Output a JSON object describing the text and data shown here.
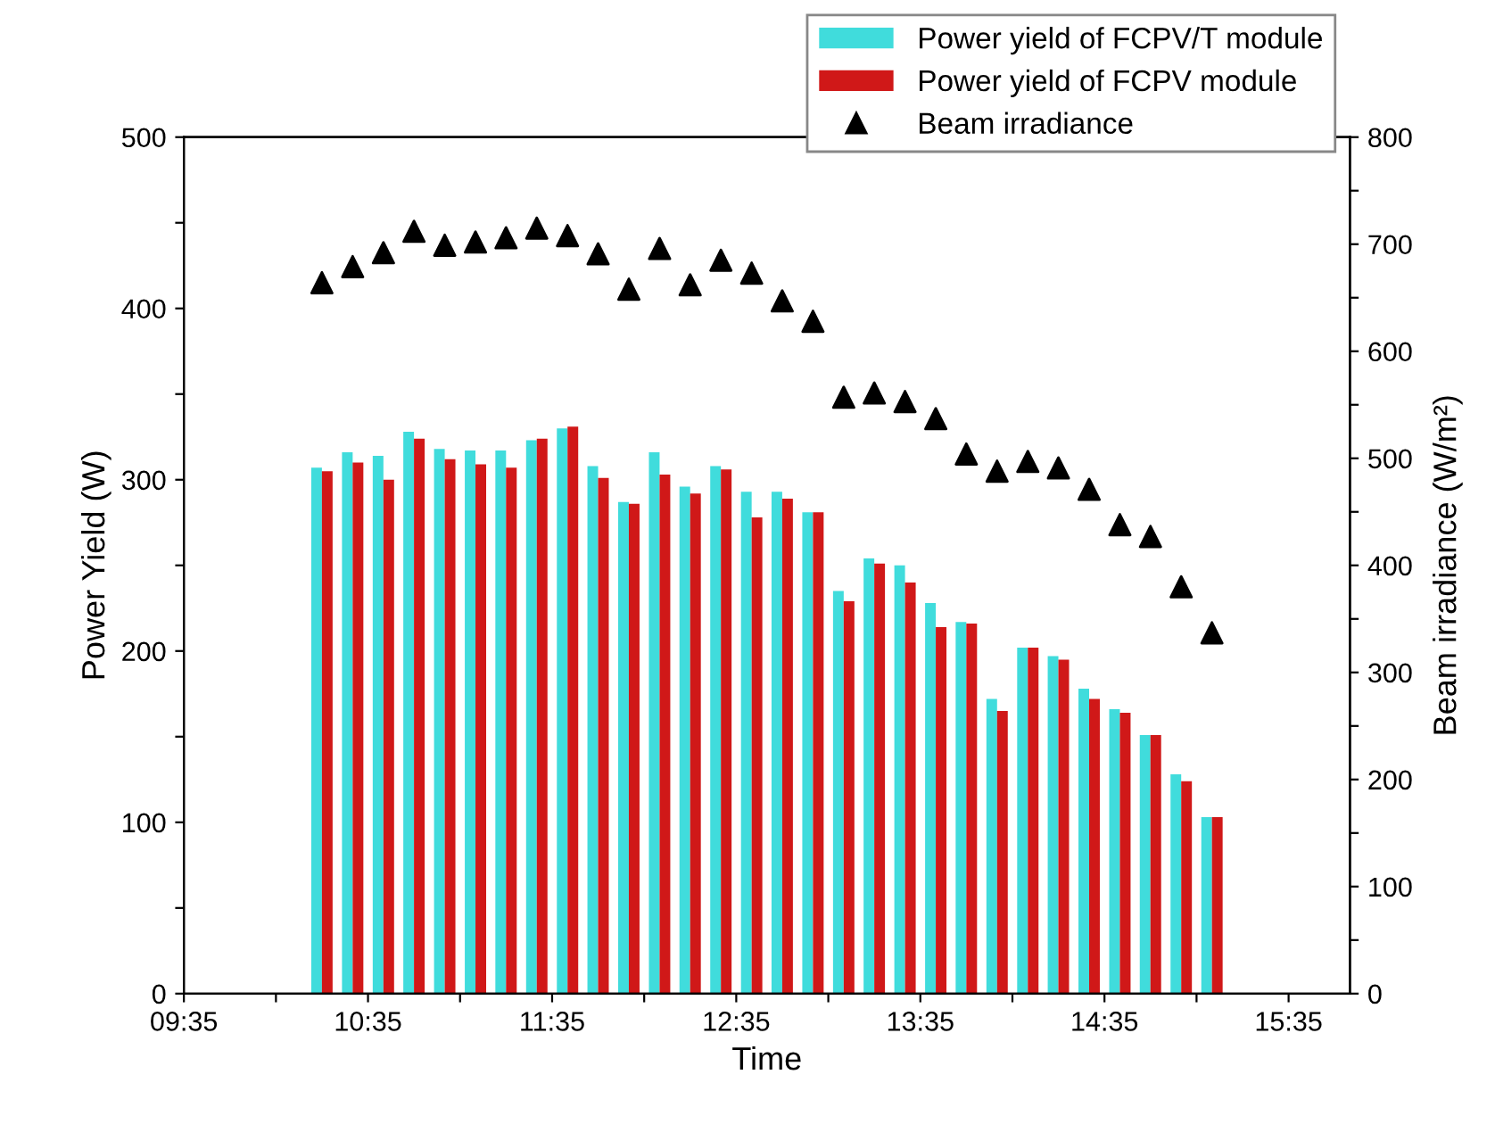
{
  "chart_data": {
    "type": "bar",
    "xlabel": "Time",
    "ylabel": "Power Yield (W)",
    "y2label": "Beam irradiance (W/m²)",
    "x": [
      10.333,
      10.5,
      10.667,
      10.833,
      11.0,
      11.167,
      11.333,
      11.5,
      11.667,
      11.833,
      12.0,
      12.167,
      12.333,
      12.5,
      12.667,
      12.833,
      13.0,
      13.167,
      13.333,
      13.5,
      13.667,
      13.833,
      14.0,
      14.167,
      14.333,
      14.5,
      14.667,
      14.833,
      15.0,
      15.167
    ],
    "series": [
      {
        "name": "Power yield of FCPV/T module",
        "color": "#40dcdc",
        "values": [
          307,
          316,
          314,
          328,
          318,
          317,
          317,
          323,
          330,
          308,
          287,
          316,
          296,
          308,
          293,
          293,
          281,
          235,
          254,
          250,
          228,
          217,
          172,
          202,
          197,
          178,
          166,
          151,
          128,
          103
        ]
      },
      {
        "name": "Power yield of FCPV module",
        "color": "#d01818",
        "values": [
          305,
          310,
          300,
          324,
          312,
          309,
          307,
          324,
          331,
          301,
          286,
          303,
          292,
          306,
          278,
          289,
          281,
          229,
          251,
          240,
          214,
          216,
          165,
          202,
          195,
          172,
          164,
          151,
          124,
          103
        ]
      },
      {
        "name": "Beam irradiance",
        "type": "scatter",
        "axis": "y2",
        "marker": "triangle",
        "color": "#000000",
        "values": [
          664,
          679,
          692,
          712,
          699,
          702,
          706,
          715,
          708,
          691,
          658,
          696,
          662,
          685,
          673,
          647,
          628,
          557,
          561,
          553,
          537,
          504,
          488,
          497,
          491,
          471,
          438,
          427,
          380,
          337
        ]
      }
    ],
    "xlim": [
      9.5833,
      15.9167
    ],
    "xticks": [
      {
        "value": 9.5833,
        "label": "09:35"
      },
      {
        "value": 10.0833,
        "label": null
      },
      {
        "value": 10.5833,
        "label": "10:35"
      },
      {
        "value": 11.0833,
        "label": null
      },
      {
        "value": 11.5833,
        "label": "11:35"
      },
      {
        "value": 12.0833,
        "label": null
      },
      {
        "value": 12.5833,
        "label": "12:35"
      },
      {
        "value": 13.0833,
        "label": null
      },
      {
        "value": 13.5833,
        "label": "13:35"
      },
      {
        "value": 14.0833,
        "label": null
      },
      {
        "value": 14.5833,
        "label": "14:35"
      },
      {
        "value": 15.0833,
        "label": null
      },
      {
        "value": 15.5833,
        "label": "15:35"
      }
    ],
    "ylim": [
      0,
      500
    ],
    "yticks": [
      0,
      {
        "value": 50,
        "label": null
      },
      100,
      {
        "value": 150,
        "label": null
      },
      200,
      {
        "value": 250,
        "label": null
      },
      300,
      {
        "value": 350,
        "label": null
      },
      400,
      {
        "value": 450,
        "label": null
      },
      500
    ],
    "y2lim": [
      0,
      800
    ],
    "y2ticks": [
      0,
      {
        "value": 50,
        "label": null
      },
      100,
      {
        "value": 150,
        "label": null
      },
      200,
      {
        "value": 250,
        "label": null
      },
      300,
      {
        "value": 350,
        "label": null
      },
      400,
      {
        "value": 450,
        "label": null
      },
      500,
      {
        "value": 550,
        "label": null
      },
      600,
      {
        "value": 650,
        "label": null
      },
      700,
      {
        "value": 750,
        "label": null
      },
      800
    ],
    "grid": false,
    "legend": "top right"
  }
}
